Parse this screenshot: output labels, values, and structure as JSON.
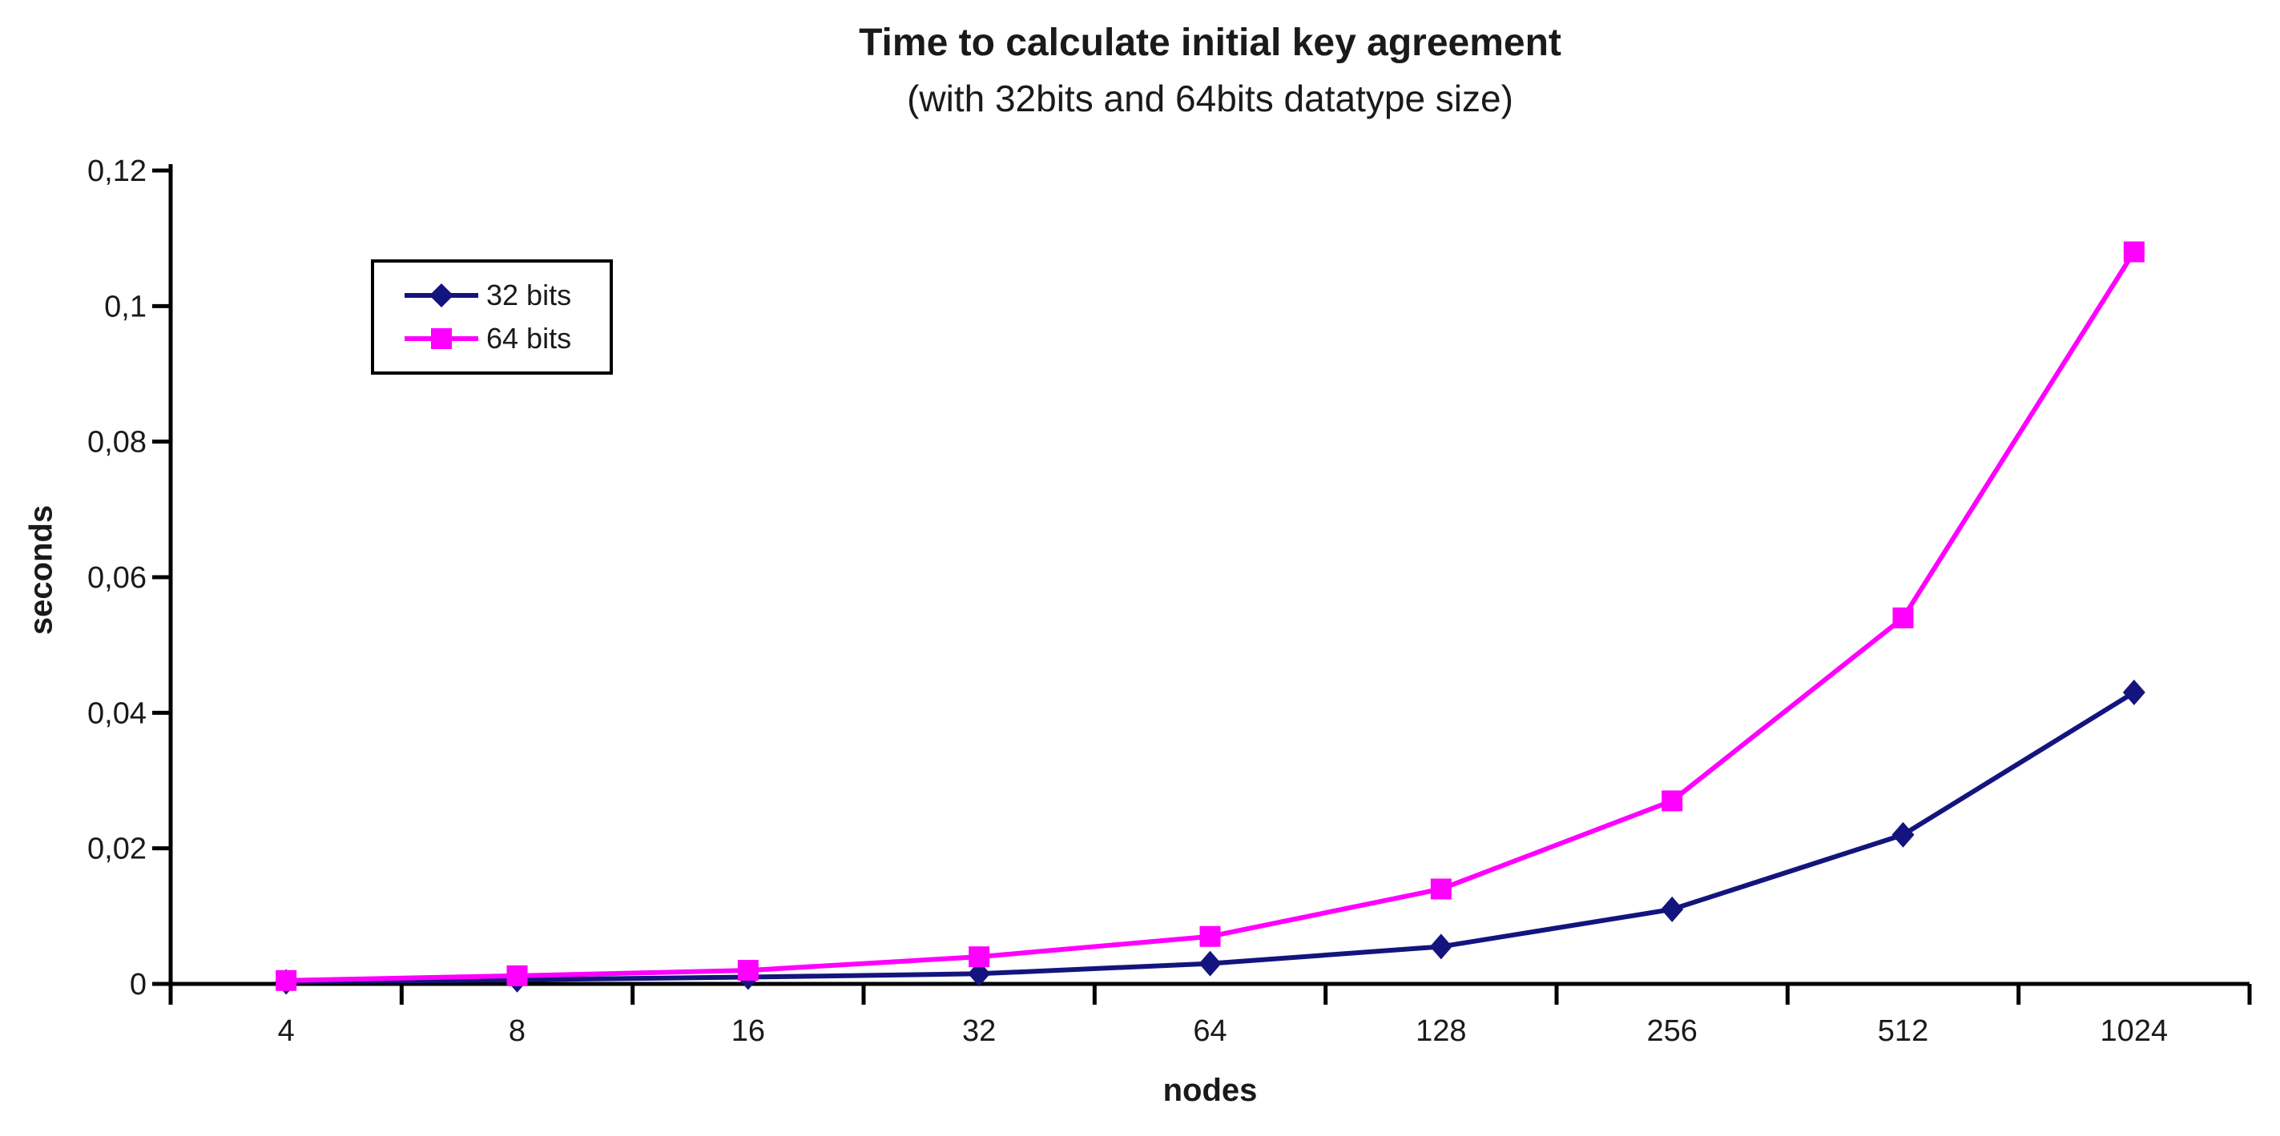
{
  "title": "Time to calculate initial key agreement",
  "subtitle": "(with 32bits and 64bits datatype size)",
  "axes": {
    "y_label": "seconds",
    "x_label": "nodes"
  },
  "legend": {
    "items": [
      {
        "label": "32 bits",
        "color": "#14147E",
        "marker": "diamond"
      },
      {
        "label": "64 bits",
        "color": "#FF00FF",
        "marker": "square"
      }
    ]
  },
  "chart_data": {
    "type": "line",
    "title": "Time to calculate initial key agreement",
    "subtitle": "(with 32bits and 64bits datatype size)",
    "xlabel": "nodes",
    "ylabel": "seconds",
    "categories": [
      "4",
      "8",
      "16",
      "32",
      "64",
      "128",
      "256",
      "512",
      "1024"
    ],
    "series": [
      {
        "name": "32 bits",
        "color": "#14147E",
        "marker": "diamond",
        "values": [
          0.0003,
          0.0006,
          0.001,
          0.0015,
          0.003,
          0.0055,
          0.011,
          0.022,
          0.043
        ]
      },
      {
        "name": "64 bits",
        "color": "#FF00FF",
        "marker": "square",
        "values": [
          0.0005,
          0.0012,
          0.002,
          0.004,
          0.007,
          0.014,
          0.027,
          0.054,
          0.108
        ]
      }
    ],
    "ylim": [
      0,
      0.12
    ],
    "y_ticks": [
      {
        "label": "0",
        "value": 0.0
      },
      {
        "label": "0,02",
        "value": 0.02
      },
      {
        "label": "0,04",
        "value": 0.04
      },
      {
        "label": "0,06",
        "value": 0.06
      },
      {
        "label": "0,08",
        "value": 0.08
      },
      {
        "label": "0,1",
        "value": 0.1
      },
      {
        "label": "0,12",
        "value": 0.12
      }
    ],
    "y_tick_format": "comma-decimal",
    "grid": false,
    "legend_position": "inside-upper-left",
    "axis_color": "#000000",
    "background": "#FFFFFF"
  }
}
